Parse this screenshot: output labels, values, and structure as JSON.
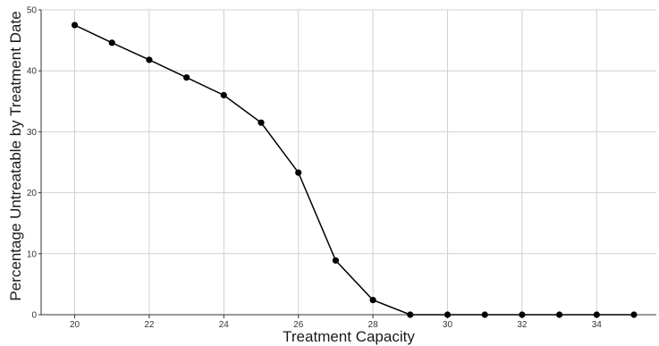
{
  "chart_data": {
    "type": "line",
    "title": "",
    "xlabel": "Treatment Capacity",
    "ylabel": "Percentage Untreatable by Treatment Date",
    "xlim": [
      19.1,
      35.6
    ],
    "ylim": [
      0,
      50
    ],
    "xticks": [
      20,
      22,
      24,
      26,
      28,
      30,
      32,
      34
    ],
    "yticks": [
      0,
      10,
      20,
      30,
      40,
      50
    ],
    "grid": true,
    "legend": "none",
    "series": [
      {
        "color": "#000000",
        "x": [
          20,
          21,
          22,
          23,
          24,
          25,
          26,
          27,
          28,
          29,
          30,
          31,
          32,
          33,
          34,
          35
        ],
        "y": [
          47.5,
          44.6,
          41.8,
          38.9,
          36.0,
          31.5,
          23.3,
          8.9,
          2.4,
          0,
          0,
          0,
          0,
          0,
          0,
          0
        ]
      }
    ]
  }
}
